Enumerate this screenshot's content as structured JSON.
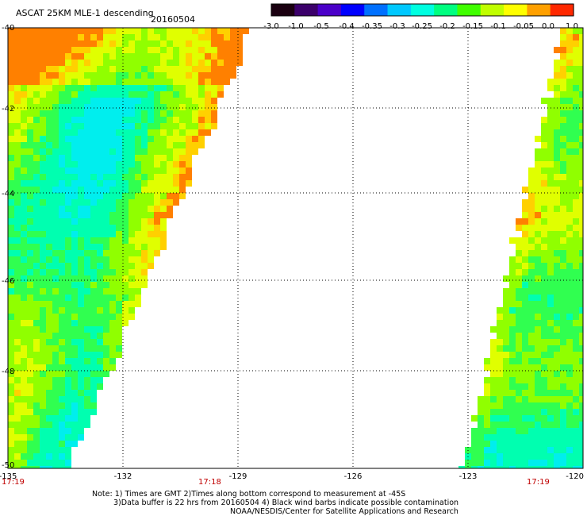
{
  "header": {
    "title": "ASCAT 25KM MLE-1 descending",
    "date": "20160504"
  },
  "colorbar": {
    "stops": [
      "#1a0010",
      "#3b006a",
      "#4a00c8",
      "#0000ff",
      "#0070ff",
      "#00c8ff",
      "#00ffe0",
      "#00ff80",
      "#40ff00",
      "#c0ff00",
      "#ffff00",
      "#ffa000",
      "#ff2800"
    ],
    "labels": [
      "-3.0",
      "-1.0",
      "-0.5",
      "-0.4",
      "-0.35",
      "-0.3",
      "-0.25",
      "-0.2",
      "-0.15",
      "-0.1",
      "-0.05",
      "0.0",
      "1.0"
    ]
  },
  "axes": {
    "lon_labels": [
      "-135",
      "-132",
      "-129",
      "-126",
      "-123",
      "-120"
    ],
    "lat_labels": [
      "-40",
      "-42",
      "-44",
      "-46",
      "-48",
      "-50"
    ]
  },
  "time_labels": [
    "17:19",
    "17:18",
    "17:19"
  ],
  "colors": {
    "time_label": "#c00000",
    "grid": "#000000"
  },
  "notes": {
    "line1": "Note: 1) Times are GMT 2)Times along bottom correspond to measurement at -45S",
    "line2": "3)Data buffer is 22 hrs from 20160504 4) Black wind barbs indicate possible contamination",
    "line3": "NOAA/NESDIS/Center for Satellite Applications and Research"
  }
}
